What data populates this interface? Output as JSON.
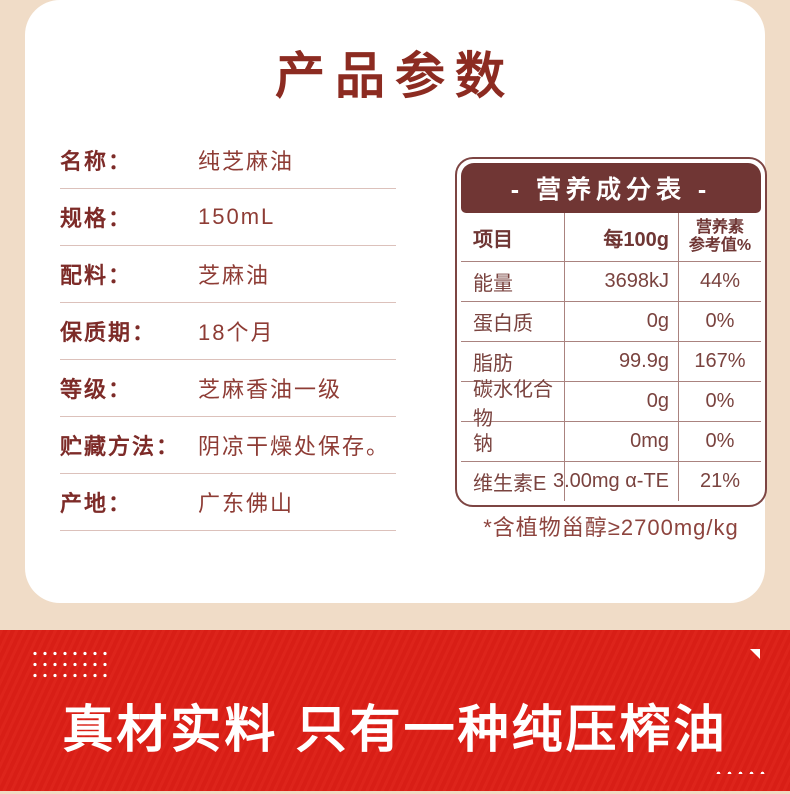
{
  "page": {
    "title": "产品参数",
    "colors": {
      "background_beige": "#f0dcc7",
      "card_white": "#ffffff",
      "title_red": "#8c2b21",
      "panel_maroon": "#703634",
      "banner_red": "#dc1f16"
    }
  },
  "specs": {
    "rows": [
      {
        "label": "名称：",
        "value": "纯芝麻油"
      },
      {
        "label": "规格：",
        "value": "150mL"
      },
      {
        "label": "配料：",
        "value": "芝麻油"
      },
      {
        "label": "保质期：",
        "value": "18个月"
      },
      {
        "label": "等级：",
        "value": "芝麻香油一级"
      },
      {
        "label": "贮藏方法：",
        "value": "阴凉干燥处保存。"
      },
      {
        "label": "产地：",
        "value": "广东佛山"
      }
    ]
  },
  "nutrition": {
    "title": "- 营养成分表 -",
    "columns": [
      "项目",
      "每100g",
      "营养素\n参考值%"
    ],
    "rows": [
      {
        "item": "能量",
        "per100g": "3698kJ",
        "nrv": "44%"
      },
      {
        "item": "蛋白质",
        "per100g": "0g",
        "nrv": "0%"
      },
      {
        "item": "脂肪",
        "per100g": "99.9g",
        "nrv": "167%"
      },
      {
        "item": "碳水化合物",
        "per100g": "0g",
        "nrv": "0%"
      },
      {
        "item": "钠",
        "per100g": "0mg",
        "nrv": "0%"
      },
      {
        "item": "维生素E",
        "per100g": "3.00mg α-TE",
        "nrv": "21%"
      }
    ],
    "footnote": "*含植物甾醇≥2700mg/kg"
  },
  "banner": {
    "headline": "真材实料 只有一种纯压榨油"
  }
}
